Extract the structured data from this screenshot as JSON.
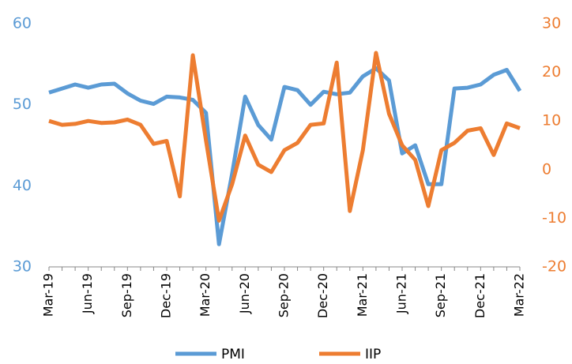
{
  "chart_data": {
    "type": "line",
    "categories": [
      "Mar-19",
      null,
      null,
      "Jun-19",
      null,
      null,
      "Sep-19",
      null,
      null,
      "Dec-19",
      null,
      null,
      "Mar-20",
      null,
      null,
      "Jun-20",
      null,
      null,
      "Sep-20",
      null,
      null,
      "Dec-20",
      null,
      null,
      "Mar-21",
      null,
      null,
      "Jun-21",
      null,
      null,
      "Sep-21",
      null,
      null,
      "Dec-21",
      null,
      null,
      "Mar-22"
    ],
    "series": [
      {
        "name": "PMI",
        "color": "#5b9bd5",
        "values": [
          51.5,
          52.0,
          52.5,
          52.1,
          52.5,
          52.6,
          51.4,
          50.5,
          50.1,
          51.0,
          50.9,
          50.6,
          49.0,
          32.8,
          41.5,
          51.0,
          47.5,
          45.7,
          52.2,
          51.8,
          50.0,
          51.6,
          51.3,
          51.5,
          53.5,
          54.5,
          53.0,
          44.0,
          45.0,
          40.2,
          40.2,
          52.0,
          52.1,
          52.5,
          53.7,
          54.3,
          51.7
        ]
      },
      {
        "name": "IIP",
        "color": "#ed7d31",
        "axis": "y2",
        "values": [
          10,
          9.2,
          9.4,
          10,
          9.6,
          9.7,
          10.3,
          9.2,
          5.3,
          5.9,
          -5.5,
          23.5,
          6,
          -10.5,
          -3,
          7,
          1,
          -0.5,
          4,
          5.5,
          9.2,
          9.5,
          22,
          -8.5,
          4,
          24,
          11.5,
          5,
          2,
          -7.5,
          4,
          5.5,
          8,
          8.5,
          3,
          9.5,
          8.5
        ]
      }
    ],
    "ylim": [
      30,
      60
    ],
    "yticks": [
      30,
      40,
      50,
      60
    ],
    "y2lim": [
      -20,
      30
    ],
    "y2ticks": [
      -20,
      -10,
      0,
      10,
      20,
      30
    ],
    "legend": "bottom"
  }
}
